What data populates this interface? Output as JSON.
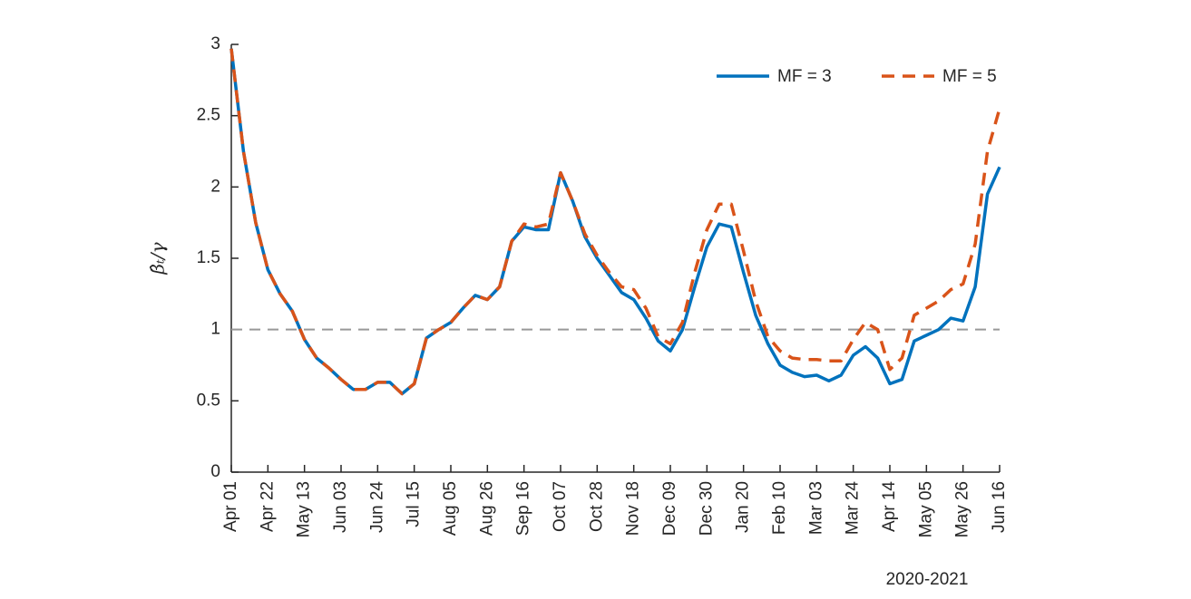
{
  "chart_data": {
    "type": "line",
    "ylabel": "β̂ₜ/γ",
    "xlabel": "2020-2021",
    "categories": [
      "Apr 01",
      null,
      null,
      "Apr 22",
      null,
      null,
      "May 13",
      null,
      null,
      "Jun 03",
      null,
      null,
      "Jun 24",
      null,
      null,
      "Jul 15",
      null,
      null,
      "Aug 05",
      null,
      null,
      "Aug 26",
      null,
      null,
      "Sep 16",
      null,
      null,
      "Oct 07",
      null,
      null,
      "Oct 28",
      null,
      null,
      "Nov 18",
      null,
      null,
      "Dec 09",
      null,
      null,
      "Dec 30",
      null,
      null,
      "Jan 20",
      null,
      null,
      "Feb 10",
      null,
      null,
      "Mar 03",
      null,
      null,
      "Mar 24",
      null,
      null,
      "Apr 14",
      null,
      null,
      "May 05",
      null,
      null,
      "May 26",
      null,
      null,
      "Jun 16"
    ],
    "series": [
      {
        "name": "MF = 3",
        "color": "#0072bd",
        "dash": false,
        "values": [
          2.97,
          2.25,
          1.75,
          1.42,
          1.25,
          1.13,
          0.93,
          0.8,
          0.73,
          0.65,
          0.58,
          0.58,
          0.63,
          0.63,
          0.55,
          0.62,
          0.94,
          1.0,
          1.05,
          1.15,
          1.24,
          1.21,
          1.3,
          1.62,
          1.72,
          1.7,
          1.7,
          2.1,
          1.9,
          1.65,
          1.5,
          1.38,
          1.26,
          1.21,
          1.08,
          0.92,
          0.85,
          1.0,
          1.3,
          1.58,
          1.74,
          1.72,
          1.4,
          1.1,
          0.9,
          0.75,
          0.7,
          0.67,
          0.68,
          0.64,
          0.68,
          0.82,
          0.88,
          0.8,
          0.62,
          0.65,
          0.92,
          0.96,
          1.0,
          1.08,
          1.06,
          1.3,
          1.95,
          2.14
        ]
      },
      {
        "name": "MF = 5",
        "color": "#d95319",
        "dash": true,
        "values": [
          2.97,
          2.25,
          1.75,
          1.42,
          1.25,
          1.13,
          0.93,
          0.8,
          0.73,
          0.65,
          0.58,
          0.58,
          0.63,
          0.63,
          0.55,
          0.62,
          0.94,
          1.0,
          1.05,
          1.15,
          1.24,
          1.21,
          1.3,
          1.62,
          1.74,
          1.72,
          1.74,
          2.1,
          1.9,
          1.67,
          1.52,
          1.4,
          1.3,
          1.28,
          1.15,
          0.95,
          0.9,
          1.05,
          1.4,
          1.7,
          1.88,
          1.88,
          1.55,
          1.2,
          0.95,
          0.85,
          0.8,
          0.79,
          0.79,
          0.78,
          0.78,
          0.93,
          1.05,
          1.0,
          0.72,
          0.8,
          1.1,
          1.15,
          1.2,
          1.28,
          1.32,
          1.6,
          2.25,
          2.55
        ]
      }
    ],
    "reference_line": 1,
    "ylim": [
      0,
      3
    ],
    "yticks": [
      0,
      0.5,
      1,
      1.5,
      2,
      2.5,
      3
    ],
    "legend": "top-right"
  }
}
